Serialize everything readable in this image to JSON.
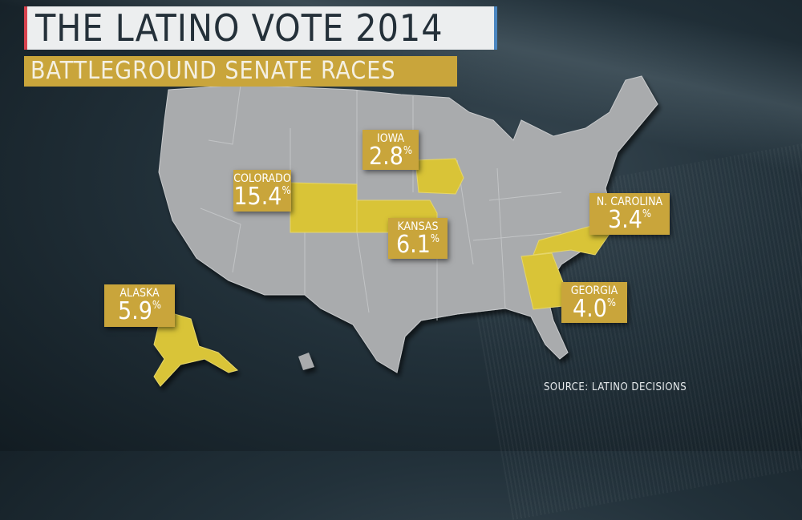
{
  "header": {
    "title": "THE LATINO VOTE 2014",
    "subtitle": "BATTLEGROUND SENATE RACES"
  },
  "colors": {
    "highlight": "#d9c437",
    "map": "#a9abad",
    "label_bg": "#c9a53b",
    "title_accent_left": "#d8434f",
    "title_accent_right": "#4b86c0"
  },
  "states": [
    {
      "name": "COLORADO",
      "value": "15.4",
      "unit": "%"
    },
    {
      "name": "IOWA",
      "value": "2.8",
      "unit": "%"
    },
    {
      "name": "KANSAS",
      "value": "6.1",
      "unit": "%"
    },
    {
      "name": "N. CAROLINA",
      "value": "3.4",
      "unit": "%"
    },
    {
      "name": "GEORGIA",
      "value": "4.0",
      "unit": "%"
    },
    {
      "name": "ALASKA",
      "value": "5.9",
      "unit": "%"
    }
  ],
  "source": "SOURCE: LATINO DECISIONS"
}
